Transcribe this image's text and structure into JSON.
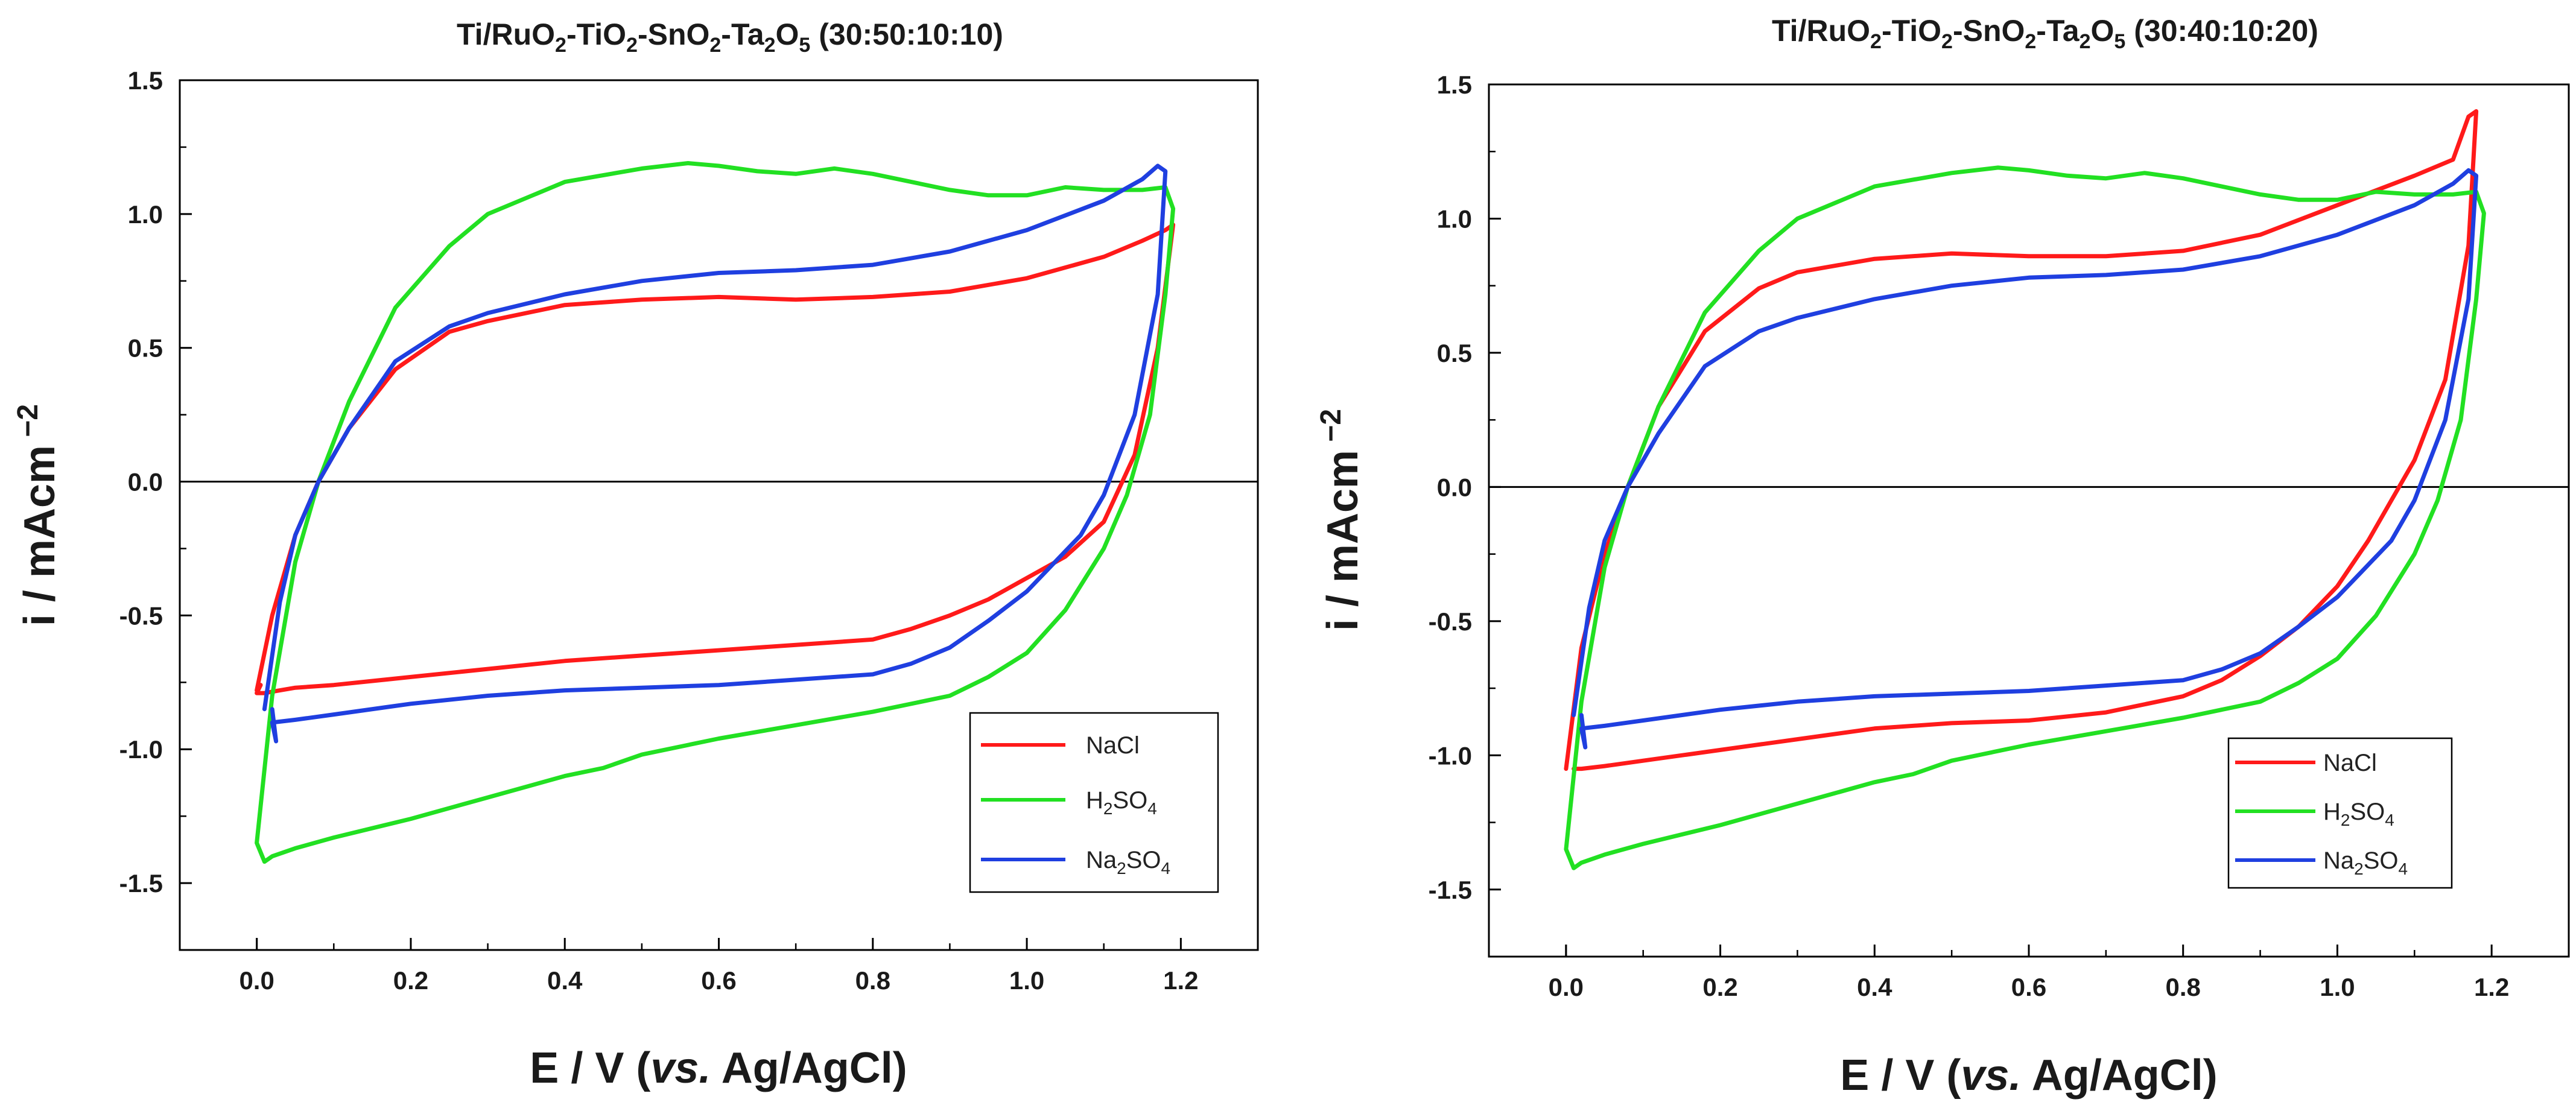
{
  "chart_data": [
    {
      "type": "line",
      "panel": "left",
      "title": {
        "base": "Ti/RuO",
        "sub1": "2",
        "mid1": "-TiO",
        "sub2": "2",
        "mid2": "-SnO",
        "sub3": "2",
        "mid3": "-Ta",
        "sub4": "2",
        "mid4": "O",
        "sub5": "5",
        "tail": " (30:50:10:10)"
      },
      "xlabel": {
        "pre": "E / V (",
        "italic": "vs.",
        "post": " Ag/AgCl)"
      },
      "ylabel": {
        "main": "i / mAcm",
        "sup": " −2"
      },
      "xlim": [
        -0.1,
        1.3
      ],
      "ylim": [
        -1.75,
        1.5
      ],
      "xticks": [
        "0.0",
        "0.2",
        "0.4",
        "0.6",
        "0.8",
        "1.0",
        "1.2"
      ],
      "yticks": [
        "1.5",
        "1.0",
        "0.5",
        "0.0",
        "-0.5",
        "-1.0",
        "-1.5"
      ],
      "zero_line": true,
      "legend": [
        "NaCl",
        "H2SO4",
        "Na2SO4"
      ],
      "series": [
        {
          "name": "NaCl",
          "color": "#ff1a1a",
          "x": [
            0.0,
            0.02,
            0.05,
            0.08,
            0.12,
            0.18,
            0.25,
            0.3,
            0.4,
            0.5,
            0.6,
            0.7,
            0.8,
            0.9,
            1.0,
            1.1,
            1.15,
            1.18,
            1.19,
            1.17,
            1.14,
            1.1,
            1.05,
            1.0,
            0.95,
            0.9,
            0.85,
            0.8,
            0.7,
            0.6,
            0.5,
            0.4,
            0.3,
            0.2,
            0.1,
            0.05,
            0.03,
            0.01,
            0.0,
            0.005,
            0.0
          ],
          "y": [
            -0.78,
            -0.5,
            -0.2,
            0.0,
            0.2,
            0.42,
            0.56,
            0.6,
            0.66,
            0.68,
            0.69,
            0.68,
            0.69,
            0.71,
            0.76,
            0.84,
            0.9,
            0.94,
            0.96,
            0.5,
            0.1,
            -0.15,
            -0.28,
            -0.36,
            -0.44,
            -0.5,
            -0.55,
            -0.59,
            -0.61,
            -0.63,
            -0.65,
            -0.67,
            -0.7,
            -0.73,
            -0.76,
            -0.77,
            -0.78,
            -0.79,
            -0.79,
            -0.76,
            -0.78
          ]
        },
        {
          "name": "H2SO4",
          "color": "#22e022",
          "x": [
            0.0,
            0.02,
            0.05,
            0.08,
            0.12,
            0.18,
            0.25,
            0.3,
            0.4,
            0.5,
            0.56,
            0.6,
            0.65,
            0.7,
            0.75,
            0.8,
            0.85,
            0.9,
            0.95,
            1.0,
            1.05,
            1.1,
            1.15,
            1.18,
            1.19,
            1.18,
            1.16,
            1.13,
            1.1,
            1.05,
            1.0,
            0.95,
            0.9,
            0.8,
            0.7,
            0.6,
            0.5,
            0.45,
            0.4,
            0.3,
            0.2,
            0.1,
            0.05,
            0.02,
            0.01,
            0.0
          ],
          "y": [
            -1.35,
            -0.8,
            -0.3,
            0.0,
            0.3,
            0.65,
            0.88,
            1.0,
            1.12,
            1.17,
            1.19,
            1.18,
            1.16,
            1.15,
            1.17,
            1.15,
            1.12,
            1.09,
            1.07,
            1.07,
            1.1,
            1.09,
            1.09,
            1.1,
            1.02,
            0.7,
            0.25,
            -0.05,
            -0.25,
            -0.48,
            -0.64,
            -0.73,
            -0.8,
            -0.86,
            -0.91,
            -0.96,
            -1.02,
            -1.07,
            -1.1,
            -1.18,
            -1.26,
            -1.33,
            -1.37,
            -1.4,
            -1.42,
            -1.35
          ]
        },
        {
          "name": "Na2SO4",
          "color": "#1f3fe0",
          "x": [
            0.01,
            0.03,
            0.05,
            0.08,
            0.12,
            0.18,
            0.25,
            0.3,
            0.4,
            0.5,
            0.6,
            0.7,
            0.8,
            0.9,
            1.0,
            1.1,
            1.15,
            1.17,
            1.18,
            1.17,
            1.14,
            1.1,
            1.07,
            1.03,
            1.0,
            0.95,
            0.9,
            0.85,
            0.8,
            0.7,
            0.6,
            0.5,
            0.4,
            0.3,
            0.2,
            0.1,
            0.05,
            0.02,
            0.025,
            0.02
          ],
          "y": [
            -0.85,
            -0.45,
            -0.2,
            0.0,
            0.2,
            0.45,
            0.58,
            0.63,
            0.7,
            0.75,
            0.78,
            0.79,
            0.81,
            0.86,
            0.94,
            1.05,
            1.13,
            1.18,
            1.16,
            0.7,
            0.25,
            -0.05,
            -0.2,
            -0.32,
            -0.41,
            -0.52,
            -0.62,
            -0.68,
            -0.72,
            -0.74,
            -0.76,
            -0.77,
            -0.78,
            -0.8,
            -0.83,
            -0.87,
            -0.89,
            -0.9,
            -0.97,
            -0.85
          ]
        }
      ]
    },
    {
      "type": "line",
      "panel": "right",
      "title": {
        "base": "Ti/RuO",
        "sub1": "2",
        "mid1": "-TiO",
        "sub2": "2",
        "mid2": "-SnO",
        "sub3": "2",
        "mid3": "-Ta",
        "sub4": "2",
        "mid4": "O",
        "sub5": "5",
        "tail": " (30:40:10:20)"
      },
      "xlabel": {
        "pre": "E / V (",
        "italic": "vs.",
        "post": " Ag/AgCl)"
      },
      "ylabel": {
        "main": "i / mAcm",
        "sup": " −2"
      },
      "xlim": [
        -0.1,
        1.3
      ],
      "ylim": [
        -1.75,
        1.5
      ],
      "xticks": [
        "0.0",
        "0.2",
        "0.4",
        "0.6",
        "0.8",
        "1.0",
        "1.2"
      ],
      "yticks": [
        "1.5",
        "1.0",
        "0.5",
        "0.0",
        "-0.5",
        "-1.0",
        "-1.5"
      ],
      "zero_line": true,
      "legend": [
        "NaCl",
        "H2SO4",
        "Na2SO4"
      ],
      "series": [
        {
          "name": "NaCl",
          "color": "#ff1a1a",
          "x": [
            0.0,
            0.02,
            0.05,
            0.08,
            0.12,
            0.18,
            0.25,
            0.3,
            0.4,
            0.5,
            0.6,
            0.7,
            0.8,
            0.9,
            1.0,
            1.1,
            1.15,
            1.17,
            1.18,
            1.17,
            1.14,
            1.1,
            1.07,
            1.04,
            1.0,
            0.95,
            0.9,
            0.85,
            0.8,
            0.7,
            0.6,
            0.5,
            0.4,
            0.3,
            0.2,
            0.1,
            0.05,
            0.02,
            0.01
          ],
          "y": [
            -1.05,
            -0.6,
            -0.25,
            0.0,
            0.3,
            0.58,
            0.74,
            0.8,
            0.85,
            0.87,
            0.86,
            0.86,
            0.88,
            0.94,
            1.05,
            1.16,
            1.22,
            1.38,
            1.4,
            0.9,
            0.4,
            0.1,
            -0.05,
            -0.2,
            -0.37,
            -0.52,
            -0.63,
            -0.72,
            -0.78,
            -0.84,
            -0.87,
            -0.88,
            -0.9,
            -0.94,
            -0.98,
            -1.02,
            -1.04,
            -1.05,
            -1.05
          ]
        },
        {
          "name": "H2SO4",
          "color": "#22e022",
          "x": [
            0.0,
            0.02,
            0.05,
            0.08,
            0.12,
            0.18,
            0.25,
            0.3,
            0.4,
            0.5,
            0.56,
            0.6,
            0.65,
            0.7,
            0.75,
            0.8,
            0.85,
            0.9,
            0.95,
            1.0,
            1.05,
            1.1,
            1.15,
            1.18,
            1.19,
            1.18,
            1.16,
            1.13,
            1.1,
            1.05,
            1.0,
            0.95,
            0.9,
            0.8,
            0.7,
            0.6,
            0.5,
            0.45,
            0.4,
            0.3,
            0.2,
            0.1,
            0.05,
            0.02,
            0.01,
            0.0
          ],
          "y": [
            -1.35,
            -0.8,
            -0.3,
            0.0,
            0.3,
            0.65,
            0.88,
            1.0,
            1.12,
            1.17,
            1.19,
            1.18,
            1.16,
            1.15,
            1.17,
            1.15,
            1.12,
            1.09,
            1.07,
            1.07,
            1.1,
            1.09,
            1.09,
            1.1,
            1.02,
            0.7,
            0.25,
            -0.05,
            -0.25,
            -0.48,
            -0.64,
            -0.73,
            -0.8,
            -0.86,
            -0.91,
            -0.96,
            -1.02,
            -1.07,
            -1.1,
            -1.18,
            -1.26,
            -1.33,
            -1.37,
            -1.4,
            -1.42,
            -1.35
          ]
        },
        {
          "name": "Na2SO4",
          "color": "#1f3fe0",
          "x": [
            0.01,
            0.03,
            0.05,
            0.08,
            0.12,
            0.18,
            0.25,
            0.3,
            0.4,
            0.5,
            0.6,
            0.7,
            0.8,
            0.9,
            1.0,
            1.1,
            1.15,
            1.17,
            1.18,
            1.17,
            1.14,
            1.1,
            1.07,
            1.03,
            1.0,
            0.95,
            0.9,
            0.85,
            0.8,
            0.7,
            0.6,
            0.5,
            0.4,
            0.3,
            0.2,
            0.1,
            0.05,
            0.02,
            0.025,
            0.02
          ],
          "y": [
            -0.85,
            -0.45,
            -0.2,
            0.0,
            0.2,
            0.45,
            0.58,
            0.63,
            0.7,
            0.75,
            0.78,
            0.79,
            0.81,
            0.86,
            0.94,
            1.05,
            1.13,
            1.18,
            1.16,
            0.7,
            0.25,
            -0.05,
            -0.2,
            -0.32,
            -0.41,
            -0.52,
            -0.62,
            -0.68,
            -0.72,
            -0.74,
            -0.76,
            -0.77,
            -0.78,
            -0.8,
            -0.83,
            -0.87,
            -0.89,
            -0.9,
            -0.97,
            -0.85
          ]
        }
      ]
    }
  ]
}
